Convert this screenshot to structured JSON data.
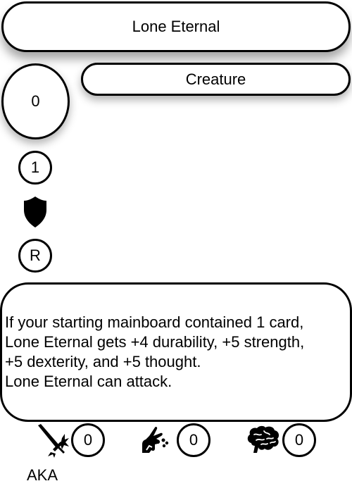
{
  "card": {
    "name": "Lone Eternal",
    "type": "Creature",
    "cost": "0",
    "level": "1",
    "rarity": "R",
    "rules_text": [
      "If your starting mainboard contained 1 card,",
      "Lone Eternal gets +4 durability, +5 strength,",
      "+5 dexterity, and +5 thought.",
      "Lone Eternal can attack."
    ],
    "stats": {
      "strength": "0",
      "dexterity": "0",
      "thought": "0"
    },
    "aka_label": "AKA"
  },
  "icons": {
    "set": "shield-icon",
    "strength": "sword-icon",
    "dexterity": "hand-icon",
    "thought": "brain-icon"
  },
  "colors": {
    "ink": "#000000",
    "background": "#ffffff"
  }
}
